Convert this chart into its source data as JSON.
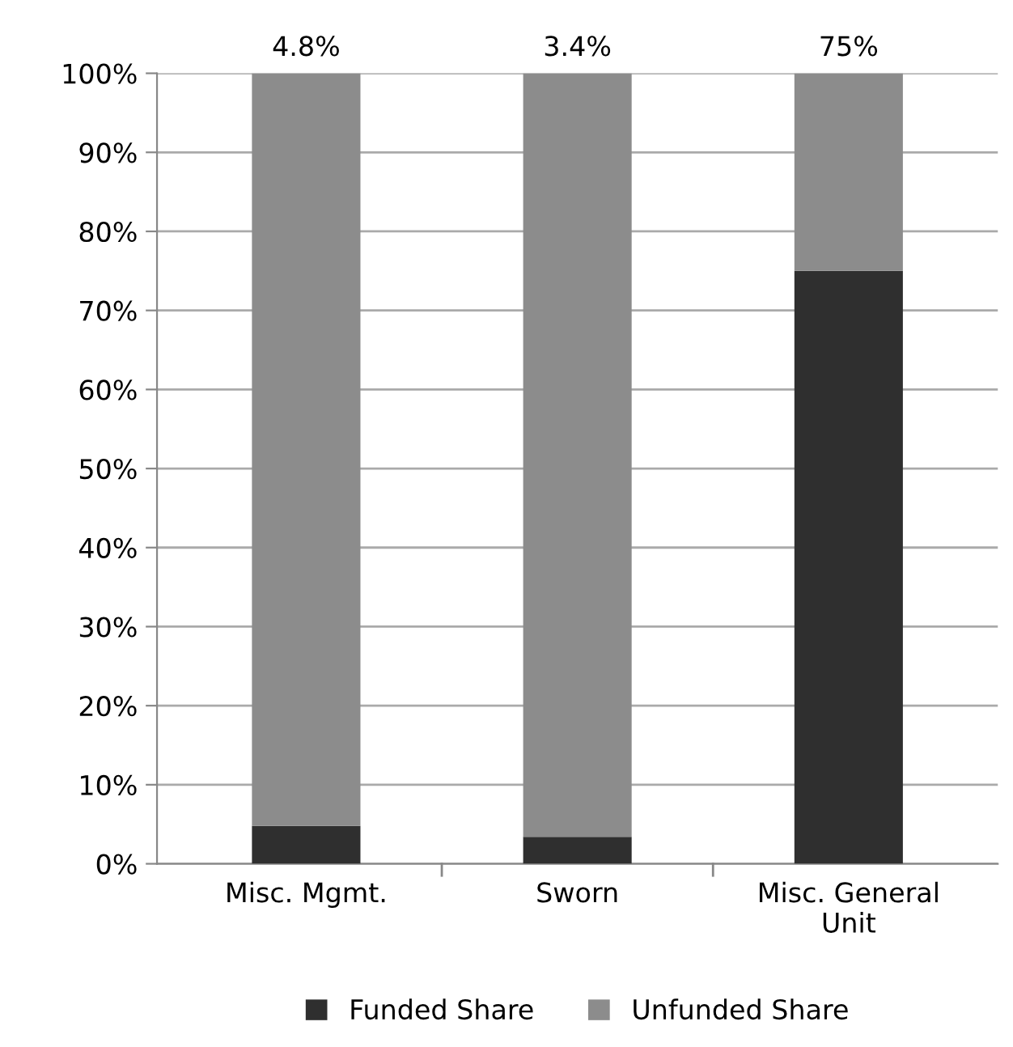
{
  "chart_data": {
    "type": "bar",
    "stacked": true,
    "categories": [
      "Misc. Mgmt.",
      "Sworn",
      "Misc. General\nUnit"
    ],
    "series": [
      {
        "name": "Funded Share",
        "color": "#2f2f2f",
        "values": [
          4.8,
          3.4,
          75
        ]
      },
      {
        "name": "Unfunded Share",
        "color": "#8c8c8c",
        "values": [
          95.2,
          96.6,
          25
        ]
      }
    ],
    "ylim": [
      0,
      100
    ],
    "yticks": [
      {
        "value": 0,
        "label": "0%"
      },
      {
        "value": 10,
        "label": "10%"
      },
      {
        "value": 20,
        "label": "20%"
      },
      {
        "value": 30,
        "label": "30%"
      },
      {
        "value": 40,
        "label": "40%"
      },
      {
        "value": 50,
        "label": "50%"
      },
      {
        "value": 60,
        "label": "60%"
      },
      {
        "value": 70,
        "label": "70%"
      },
      {
        "value": 80,
        "label": "80%"
      },
      {
        "value": 90,
        "label": "90%"
      },
      {
        "value": 100,
        "label": "100%"
      }
    ],
    "annotations": [
      "4.8%",
      "3.4%",
      "75%"
    ],
    "grid": "y",
    "legend": "bottom"
  }
}
